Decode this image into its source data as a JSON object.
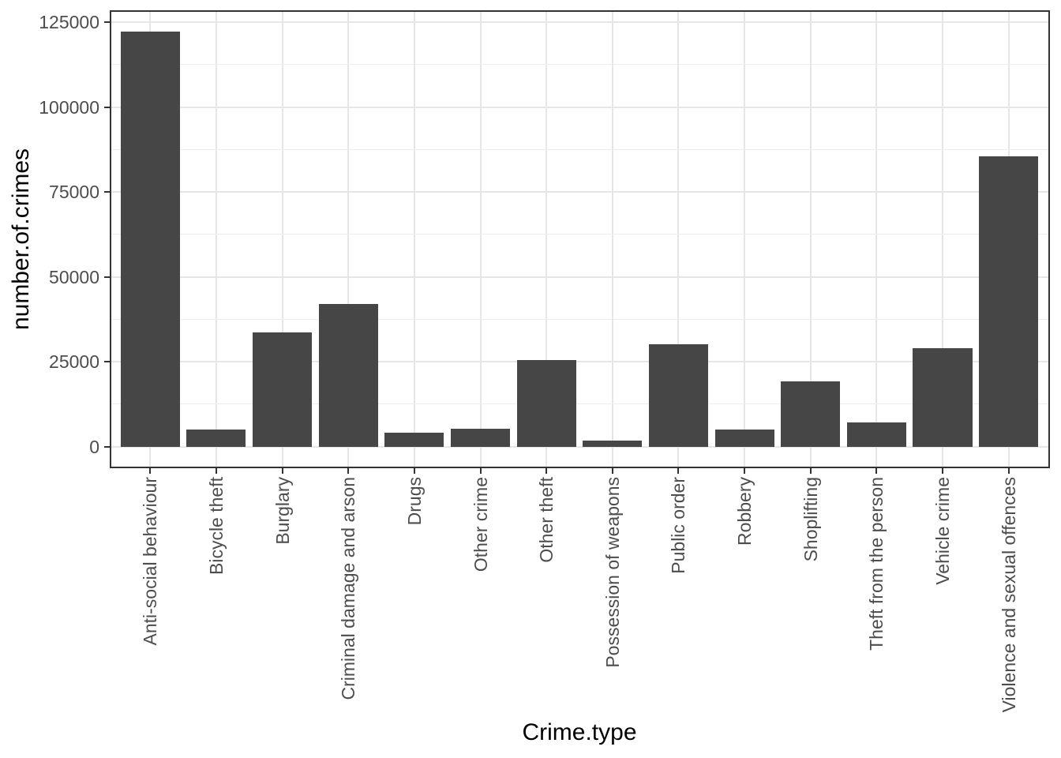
{
  "figure": {
    "background": "#FFFFFF",
    "kind": "ggplot2 theme_bw bar chart"
  },
  "chart_data": {
    "type": "bar",
    "title": "",
    "xlabel": "Crime.type",
    "ylabel": "number.of.crimes",
    "categories": [
      "Anti-social behaviour",
      "Bicycle theft",
      "Burglary",
      "Criminal damage and arson",
      "Drugs",
      "Other crime",
      "Other theft",
      "Possession of weapons",
      "Public order",
      "Robbery",
      "Shoplifting",
      "Theft from the person",
      "Vehicle crime",
      "Violence and sexual offences"
    ],
    "values": [
      122200,
      5000,
      33600,
      42000,
      4200,
      5300,
      25600,
      1800,
      30200,
      5150,
      19300,
      7100,
      28900,
      85500
    ],
    "y_ticks": [
      0,
      25000,
      50000,
      75000,
      100000,
      125000
    ],
    "y_tick_labels": [
      "0",
      "25000",
      "50000",
      "75000",
      "100000",
      "125000"
    ],
    "ylim": [
      0,
      125000
    ],
    "expansion": 0.05,
    "grid": "horizontal major+minor, vertical major at category centers",
    "legend_position": "none",
    "x_label_angle_deg": 90
  },
  "colors": {
    "bar_fill": "#464646",
    "panel_border": "#333333",
    "grid_major": "#E6E6E6",
    "grid_minor": "#EDEDED",
    "tick_mark": "#333333",
    "axis_text": "#4D4D4D",
    "axis_title": "#000000",
    "background": "#FFFFFF"
  }
}
